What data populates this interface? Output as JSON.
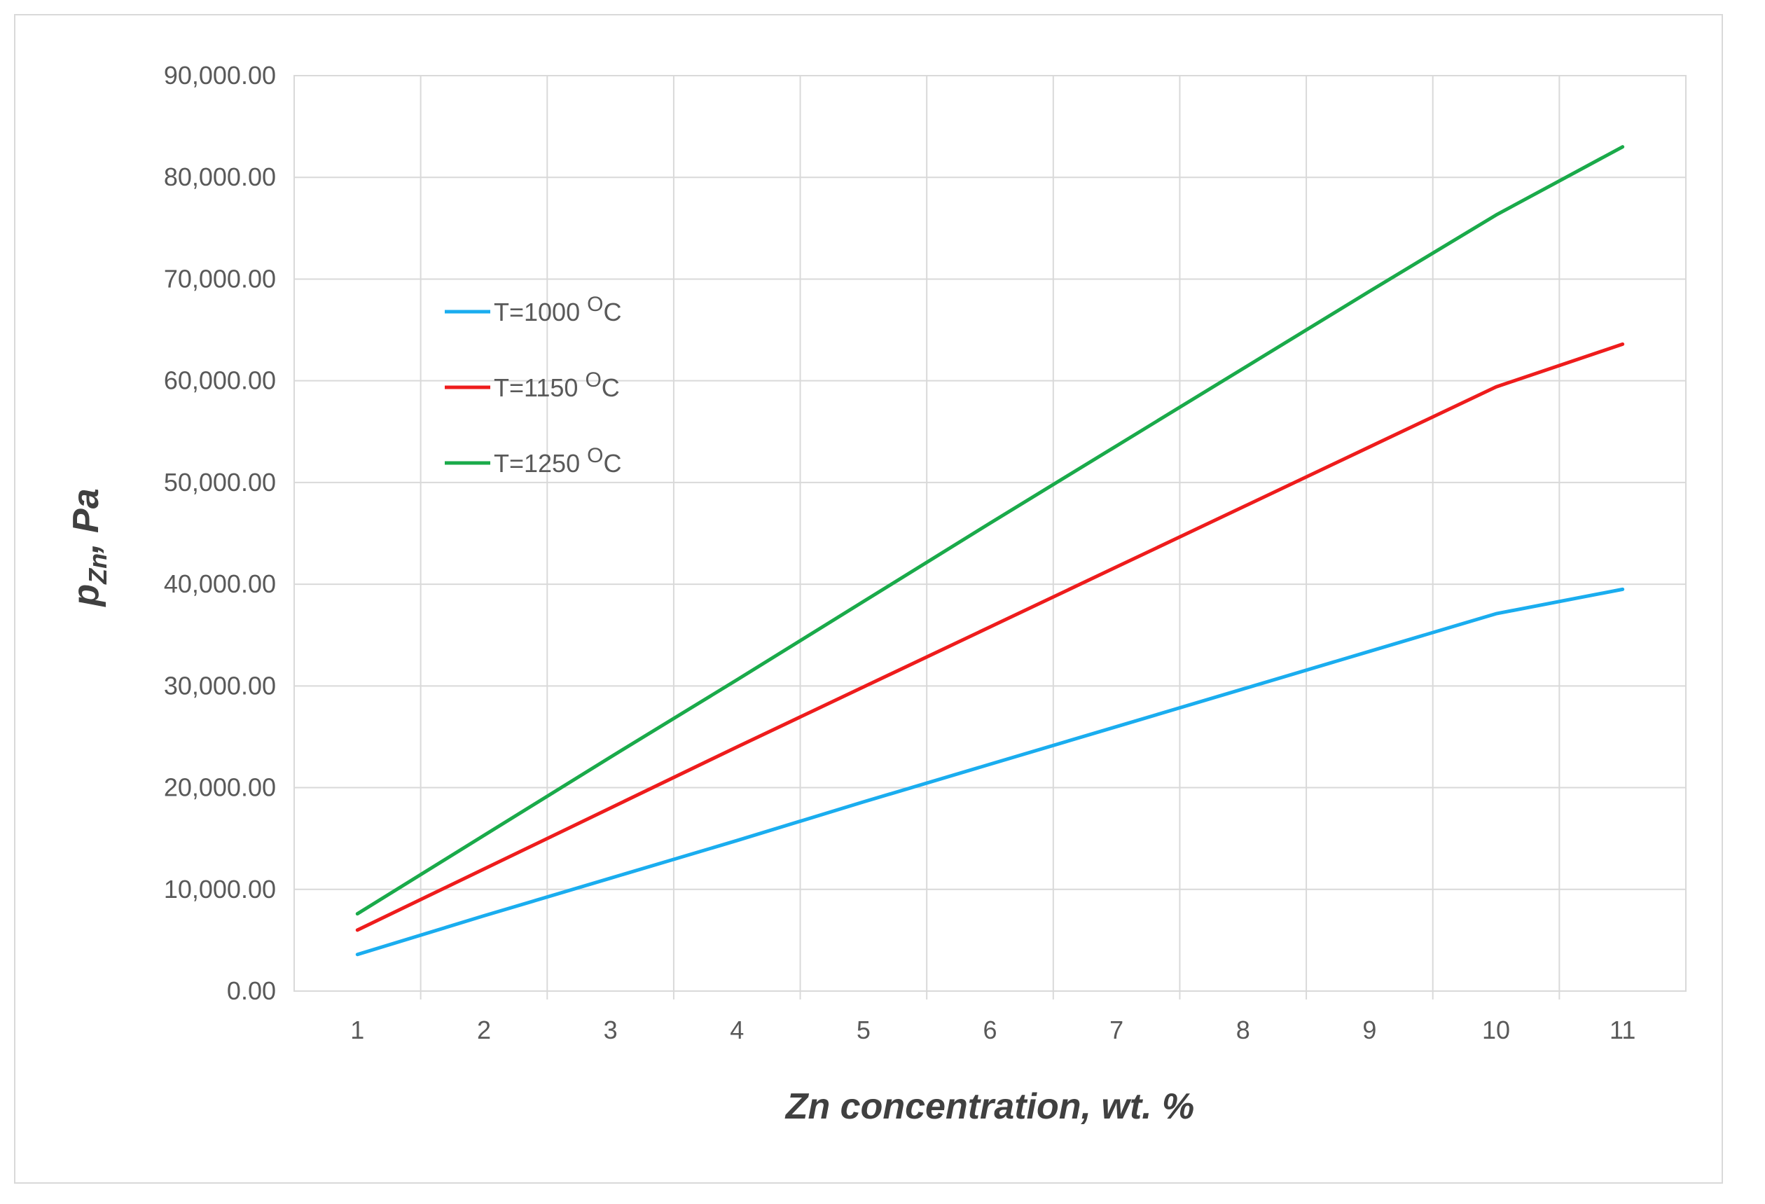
{
  "chart_data": {
    "type": "line",
    "x": [
      1,
      2,
      3,
      4,
      5,
      6,
      7,
      8,
      9,
      10,
      11
    ],
    "series": [
      {
        "name": "T=1000 OC",
        "label_main": "T=1000 ",
        "label_sup": "O",
        "label_tail": "C",
        "color": "#1AADEF",
        "values": [
          3600,
          7400,
          11100,
          14800,
          18600,
          22300,
          26000,
          29700,
          33400,
          37100,
          39500
        ]
      },
      {
        "name": "T=1150 OC",
        "label_main": "T=1150 ",
        "label_sup": "O",
        "label_tail": "C",
        "color": "#EE1C1C",
        "values": [
          6000,
          12000,
          18000,
          24000,
          29900,
          35800,
          41700,
          47600,
          53500,
          59400,
          63600
        ]
      },
      {
        "name": "T=1250 OC",
        "label_main": "T=1250 ",
        "label_sup": "O",
        "label_tail": "C",
        "color": "#1AAA4A",
        "values": [
          7600,
          15300,
          23000,
          30600,
          38300,
          46000,
          53600,
          61200,
          68800,
          76300,
          83000
        ]
      }
    ],
    "x_ticks": [
      "1",
      "2",
      "3",
      "4",
      "5",
      "6",
      "7",
      "8",
      "9",
      "10",
      "11"
    ],
    "y_ticks": [
      "0.00",
      "10,000.00",
      "20,000.00",
      "30,000.00",
      "40,000.00",
      "50,000.00",
      "60,000.00",
      "70,000.00",
      "80,000.00",
      "90,000.00"
    ],
    "ylim": [
      0,
      90000
    ],
    "xlabel": "Zn concentration, wt. %",
    "ylabel_main": "p",
    "ylabel_sub": "Zn",
    "ylabel_tail": ", Pa",
    "grid": true,
    "legend_position": "top-left"
  }
}
